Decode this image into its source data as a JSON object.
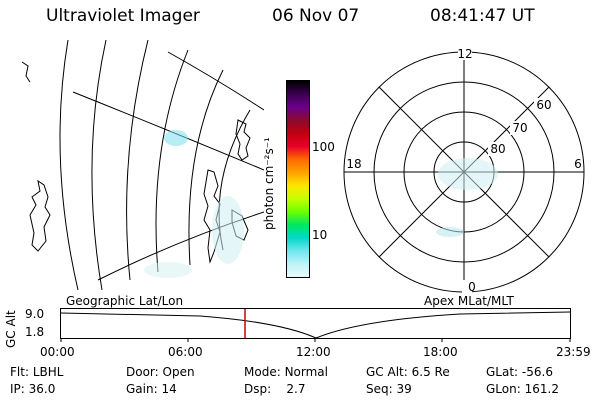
{
  "header": {
    "title": "Ultraviolet Imager",
    "date": "06 Nov 07",
    "time": "08:41:47 UT"
  },
  "colorbar": {
    "label": "photon cm⁻²s⁻¹",
    "ticks": [
      "100",
      "10"
    ],
    "colors": [
      "#000000",
      "#3a004f",
      "#6a008a",
      "#8b0a2e",
      "#c00010",
      "#e8002a",
      "#ff6a00",
      "#ffa100",
      "#ffe600",
      "#c6ff00",
      "#6cff00",
      "#00e860",
      "#00d8c8",
      "#6fe6ee",
      "#bff3f6",
      "#eafafa"
    ]
  },
  "polar_plot": {
    "mlt_labels": {
      "top": "12",
      "bottom": "0",
      "left": "18",
      "right": "6"
    },
    "lat_labels": [
      "60",
      "70",
      "80"
    ]
  },
  "panel_labels": {
    "left": "Geographic Lat/Lon",
    "right": "Apex MLat/MLT"
  },
  "altitude_strip": {
    "axis_label": "GC Alt",
    "yticks": [
      "9.0",
      "1.8"
    ],
    "xticks": [
      "00:00",
      "06:00",
      "12:00",
      "18:00",
      "23:59"
    ]
  },
  "footer": {
    "row1": [
      {
        "label": "Flt:",
        "value": "LBHL"
      },
      {
        "label": "Door:",
        "value": "Open"
      },
      {
        "label": "Mode:",
        "value": "Normal"
      },
      {
        "label": "GC Alt:",
        "value": "6.5 Re"
      },
      {
        "label": "GLat:",
        "value": "-56.6"
      }
    ],
    "row2": [
      {
        "label": "IP:",
        "value": "36.0"
      },
      {
        "label": "Gain:",
        "value": "14"
      },
      {
        "label": "Dsp:",
        "value": "2.7"
      },
      {
        "label": "Seq:",
        "value": "39"
      },
      {
        "label": "GLon:",
        "value": "161.2"
      }
    ]
  }
}
